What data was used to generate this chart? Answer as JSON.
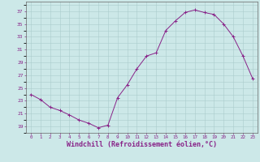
{
  "hours": [
    0,
    1,
    2,
    3,
    4,
    5,
    6,
    7,
    8,
    9,
    10,
    11,
    12,
    13,
    14,
    15,
    16,
    17,
    18,
    19,
    20,
    21,
    22,
    23
  ],
  "windchill": [
    24.0,
    23.2,
    22.0,
    21.5,
    20.8,
    20.0,
    19.5,
    18.8,
    19.2,
    23.5,
    25.5,
    28.0,
    30.0,
    30.5,
    34.0,
    35.5,
    36.8,
    37.2,
    36.8,
    36.5,
    35.0,
    33.0,
    30.0,
    26.5
  ],
  "line_color": "#882288",
  "marker": "+",
  "bg_color": "#cce8e8",
  "grid_color": "#aacccc",
  "axis_color": "#444444",
  "tick_color": "#882288",
  "xlabel": "Windchill (Refroidissement éolien,°C)",
  "xlabel_color": "#882288",
  "xlabel_fontsize": 6.0,
  "ylabel_values": [
    19,
    21,
    23,
    25,
    27,
    29,
    31,
    33,
    35,
    37
  ],
  "ylim": [
    18.0,
    38.5
  ],
  "xlim": [
    -0.5,
    23.5
  ]
}
